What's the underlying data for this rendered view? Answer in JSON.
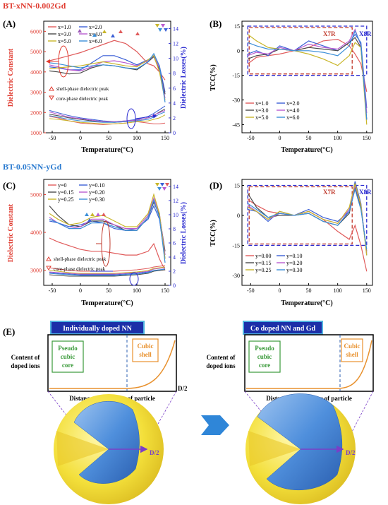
{
  "colors": {
    "red": "#e03c31",
    "blue": "#2b2bd0",
    "banner_fill": "#1c2fa8",
    "banner_border": "#4fb3e0",
    "core_green": "#3a9a3a",
    "shell_orange": "#e8912e",
    "x7r": "#c0392b",
    "box_blue": "#2b2bd0",
    "arrow": "#2f86d8",
    "sphere_outer": "#f3df3a",
    "sphere_inner": "#3f7fd1",
    "diameter": "#7a3ec8",
    "series": [
      "#e05b5b",
      "#3b5fd6",
      "#4a4a4a",
      "#b95ad0",
      "#c9b62a",
      "#3a8ed8"
    ]
  },
  "chart_data": [
    {
      "panel": "(A)",
      "title": "BT-xNN-0.002Gd",
      "type": "line",
      "xlabel": "Temperature(°C)",
      "ylabel": "Dielectric Constant",
      "ylabel_right": "Dielectric Losses(%)",
      "xlim": [
        -65,
        160
      ],
      "ylim": [
        1000,
        6500
      ],
      "ylim_right": [
        0,
        15
      ],
      "xticks": [
        -50,
        0,
        50,
        100,
        150
      ],
      "yticks": [
        1000,
        2000,
        3000,
        4000,
        5000,
        6000
      ],
      "yticks_right": [
        0,
        2,
        4,
        6,
        8,
        10,
        12,
        14
      ],
      "legend": [
        "x=1.0",
        "x=2.0",
        "x=3.0",
        "x=4.0",
        "x=5.0",
        "x=6.0"
      ],
      "legend_loc": "top-left",
      "annotations": [
        "shell-phase dielectric peak",
        "core-phase dielectric peak"
      ],
      "x": [
        -55,
        -40,
        -20,
        0,
        20,
        40,
        60,
        80,
        100,
        120,
        130,
        140,
        150
      ],
      "series": [
        {
          "name": "x=1.0",
          "values": [
            4550,
            4650,
            4800,
            4950,
            5150,
            5350,
            5550,
            5400,
            5000,
            4400,
            4300,
            4000,
            3600
          ],
          "losses": [
            2.2,
            2.0,
            1.6,
            1.3,
            1.2,
            1.1,
            1.2,
            1.3,
            1.5,
            1.3,
            1.2,
            1.2,
            1.3
          ]
        },
        {
          "name": "x=2.0",
          "values": [
            4250,
            4200,
            4100,
            4100,
            4450,
            4800,
            4800,
            4600,
            4350,
            4600,
            4800,
            4300,
            3000
          ],
          "losses": [
            3.0,
            2.7,
            2.3,
            2.0,
            1.8,
            1.6,
            1.5,
            1.6,
            1.8,
            2.2,
            2.6,
            3.1,
            3.6
          ]
        },
        {
          "name": "x=3.0",
          "values": [
            4050,
            4000,
            3900,
            3950,
            4200,
            4350,
            4300,
            4200,
            4100,
            4500,
            4750,
            4100,
            2900
          ],
          "losses": [
            2.5,
            2.3,
            2.0,
            1.8,
            1.6,
            1.5,
            1.4,
            1.5,
            1.7,
            2.0,
            2.3,
            2.8,
            3.2
          ]
        },
        {
          "name": "x=4.0",
          "values": [
            4350,
            4250,
            4100,
            4050,
            4250,
            4500,
            4550,
            4450,
            4300,
            4550,
            4800,
            4200,
            2700
          ],
          "losses": [
            2.8,
            2.5,
            2.1,
            1.9,
            1.7,
            1.5,
            1.5,
            1.6,
            1.7,
            2.0,
            2.4,
            2.7,
            3.0
          ]
        },
        {
          "name": "x=5.0",
          "values": [
            4150,
            4200,
            4250,
            4300,
            4400,
            4500,
            4400,
            4300,
            4250,
            4600,
            4800,
            4000,
            2600
          ],
          "losses": [
            1.9,
            1.8,
            1.6,
            1.4,
            1.3,
            1.2,
            1.2,
            1.3,
            1.5,
            1.6,
            1.8,
            2.0,
            2.4
          ]
        },
        {
          "name": "x=6.0",
          "values": [
            4450,
            4400,
            4300,
            4200,
            4300,
            4350,
            4300,
            4200,
            4150,
            4500,
            4900,
            4300,
            2500
          ],
          "losses": [
            2.3,
            2.1,
            1.8,
            1.6,
            1.5,
            1.4,
            1.4,
            1.5,
            1.6,
            1.8,
            2.1,
            2.5,
            2.8
          ]
        }
      ]
    },
    {
      "panel": "(B)",
      "type": "line",
      "xlabel": "Temperature(°C)",
      "ylabel": "TCC(%)",
      "xlim": [
        -65,
        160
      ],
      "ylim": [
        -50,
        18
      ],
      "xticks": [
        -50,
        0,
        50,
        100,
        150
      ],
      "yticks": [
        -45,
        -30,
        -15,
        0,
        15
      ],
      "legend": [
        "x=1.0",
        "x=2.0",
        "x=3.0",
        "x=4.0",
        "x=5.0",
        "x=6.0"
      ],
      "legend_loc": "bottom-left",
      "boxes": [
        "X7R",
        "X8R"
      ],
      "x": [
        -55,
        -40,
        -20,
        0,
        25,
        50,
        75,
        100,
        120,
        130,
        140,
        150
      ],
      "series": [
        {
          "name": "x=1.0",
          "values": [
            -8,
            -4,
            -3,
            -2,
            0,
            2,
            6,
            7,
            3,
            -2,
            -8,
            -25
          ]
        },
        {
          "name": "x=2.0",
          "values": [
            -2,
            0,
            -3,
            3,
            0,
            6,
            3,
            0,
            5,
            10,
            5,
            -35
          ]
        },
        {
          "name": "x=3.0",
          "values": [
            -5,
            -3,
            -2,
            1,
            0,
            2,
            1,
            0,
            5,
            8,
            2,
            -42
          ]
        },
        {
          "name": "x=4.0",
          "values": [
            -3,
            -1,
            -2,
            2,
            0,
            4,
            2,
            1,
            6,
            13,
            3,
            -38
          ]
        },
        {
          "name": "x=5.0",
          "values": [
            10,
            6,
            2,
            1,
            0,
            -2,
            -5,
            -9,
            -3,
            5,
            2,
            -45
          ]
        },
        {
          "name": "x=6.0",
          "values": [
            5,
            3,
            1,
            1,
            0,
            0,
            -1,
            -3,
            3,
            12,
            4,
            -42
          ]
        }
      ]
    },
    {
      "panel": "(C)",
      "title": "BT-0.05NN-yGd",
      "type": "line",
      "xlabel": "Temperature(°C)",
      "ylabel": "Dielectric Constant",
      "ylabel_right": "Dielectric Losses(%)",
      "xlim": [
        -65,
        160
      ],
      "ylim": [
        2600,
        5400
      ],
      "ylim_right": [
        0,
        15
      ],
      "xticks": [
        -50,
        0,
        50,
        100,
        150
      ],
      "yticks": [
        3000,
        4000,
        5000
      ],
      "yticks_right": [
        0,
        2,
        4,
        6,
        8,
        10,
        12,
        14
      ],
      "legend": [
        "y=0",
        "y=0.10",
        "y=0.15",
        "y=0.20",
        "y=0.25",
        "y=0.30"
      ],
      "legend_loc": "top-left",
      "annotations": [
        "shell-phase dielectric peak",
        "core-phase dielectric peak"
      ],
      "x": [
        -55,
        -40,
        -20,
        0,
        20,
        40,
        60,
        80,
        100,
        120,
        130,
        140,
        150
      ],
      "series": [
        {
          "name": "y=0",
          "values": [
            3850,
            3750,
            3650,
            3550,
            3500,
            3500,
            3450,
            3400,
            3400,
            3500,
            3700,
            3300,
            3000
          ],
          "losses": [
            2.5,
            2.3,
            2.1,
            2.0,
            2.0,
            2.0,
            2.0,
            2.1,
            2.2,
            2.4,
            2.6,
            2.7,
            2.8
          ]
        },
        {
          "name": "y=0.10",
          "values": [
            4300,
            4250,
            4150,
            4200,
            4300,
            4250,
            4100,
            4050,
            4100,
            4350,
            4700,
            4350,
            3300
          ],
          "losses": [
            1.8,
            1.7,
            1.6,
            1.5,
            1.5,
            1.5,
            1.5,
            1.6,
            1.7,
            1.9,
            2.1,
            2.2,
            2.3
          ]
        },
        {
          "name": "y=0.15",
          "values": [
            4700,
            4450,
            4200,
            4150,
            4300,
            4300,
            4200,
            4050,
            4050,
            4400,
            4800,
            4450,
            3500
          ],
          "losses": [
            1.5,
            1.4,
            1.3,
            1.3,
            1.3,
            1.3,
            1.3,
            1.4,
            1.5,
            1.7,
            2.0,
            2.1,
            2.2
          ]
        },
        {
          "name": "y=0.20",
          "values": [
            4400,
            4250,
            4100,
            4150,
            4350,
            4350,
            4200,
            4100,
            4100,
            4450,
            4900,
            4500,
            3400
          ],
          "losses": [
            1.9,
            1.8,
            1.7,
            1.6,
            1.6,
            1.6,
            1.6,
            1.7,
            1.8,
            2.0,
            2.3,
            2.4,
            2.5
          ]
        },
        {
          "name": "y=0.25",
          "values": [
            4500,
            4350,
            4200,
            4250,
            4400,
            4450,
            4300,
            4150,
            4150,
            4500,
            5000,
            4500,
            3300
          ],
          "losses": [
            2.1,
            2.0,
            1.8,
            1.7,
            1.7,
            1.7,
            1.7,
            1.8,
            1.9,
            2.1,
            2.4,
            2.5,
            2.6
          ]
        },
        {
          "name": "y=0.30",
          "values": [
            4350,
            4250,
            4100,
            4100,
            4250,
            4250,
            4150,
            4050,
            4050,
            4400,
            4850,
            4400,
            3200
          ],
          "losses": [
            1.7,
            1.6,
            1.5,
            1.4,
            1.4,
            1.4,
            1.4,
            1.5,
            1.6,
            1.8,
            2.1,
            2.2,
            2.3
          ]
        }
      ]
    },
    {
      "panel": "(D)",
      "type": "line",
      "xlabel": "Temperature(°C)",
      "ylabel": "TCC(%)",
      "xlim": [
        -65,
        160
      ],
      "ylim": [
        -35,
        18
      ],
      "xticks": [
        -50,
        0,
        50,
        100,
        150
      ],
      "yticks": [
        -30,
        -15,
        0,
        15
      ],
      "legend": [
        "y=0.00",
        "y=0.10",
        "y=0.15",
        "y=0.20",
        "y=0.25",
        "y=0.30"
      ],
      "legend_loc": "bottom-left",
      "boxes": [
        "X7R",
        "X8R"
      ],
      "x": [
        -55,
        -40,
        -20,
        0,
        25,
        50,
        75,
        100,
        120,
        130,
        140,
        150
      ],
      "series": [
        {
          "name": "y=0.00",
          "values": [
            8,
            5,
            2,
            1,
            0,
            2,
            -2,
            -8,
            -12,
            -5,
            -15,
            -28
          ]
        },
        {
          "name": "y=0.10",
          "values": [
            3,
            2,
            -3,
            2,
            0,
            3,
            -1,
            -3,
            2,
            17,
            6,
            -20
          ]
        },
        {
          "name": "y=0.15",
          "values": [
            11,
            4,
            -1,
            0,
            0,
            1,
            -3,
            -5,
            1,
            14,
            4,
            -18
          ]
        },
        {
          "name": "y=0.20",
          "values": [
            5,
            2,
            -2,
            1,
            0,
            2,
            -2,
            -4,
            3,
            15,
            5,
            -19
          ]
        },
        {
          "name": "y=0.25",
          "values": [
            4,
            2,
            -2,
            2,
            0,
            2,
            -2,
            -4,
            4,
            16,
            5,
            -20
          ]
        },
        {
          "name": "y=0.30",
          "values": [
            6,
            3,
            -1,
            1,
            0,
            1,
            -3,
            -5,
            2,
            13,
            3,
            -17
          ]
        }
      ]
    }
  ],
  "panel_e": {
    "label": "(E)",
    "left": {
      "banner": "Individually doped NN",
      "ylabel_line1": "Content of",
      "ylabel_line2": "doped ions",
      "core_line1": "Pseudo",
      "core_line2": "cubic",
      "core_line3": "core",
      "shell_line1": "Cubic",
      "shell_line2": "shell",
      "x_end": "D/2",
      "xlabel": "Distance from center of particle",
      "diameter": "D/2"
    },
    "right": {
      "banner": "Co doped NN and Gd",
      "ylabel_line1": "Content of",
      "ylabel_line2": "doped ions",
      "core_line1": "Pseudo",
      "core_line2": "cubic",
      "core_line3": "core",
      "shell_line1": "Cubic",
      "shell_line2": "shell",
      "xlabel": "Distance from center of particle",
      "diameter": "D/2"
    }
  }
}
